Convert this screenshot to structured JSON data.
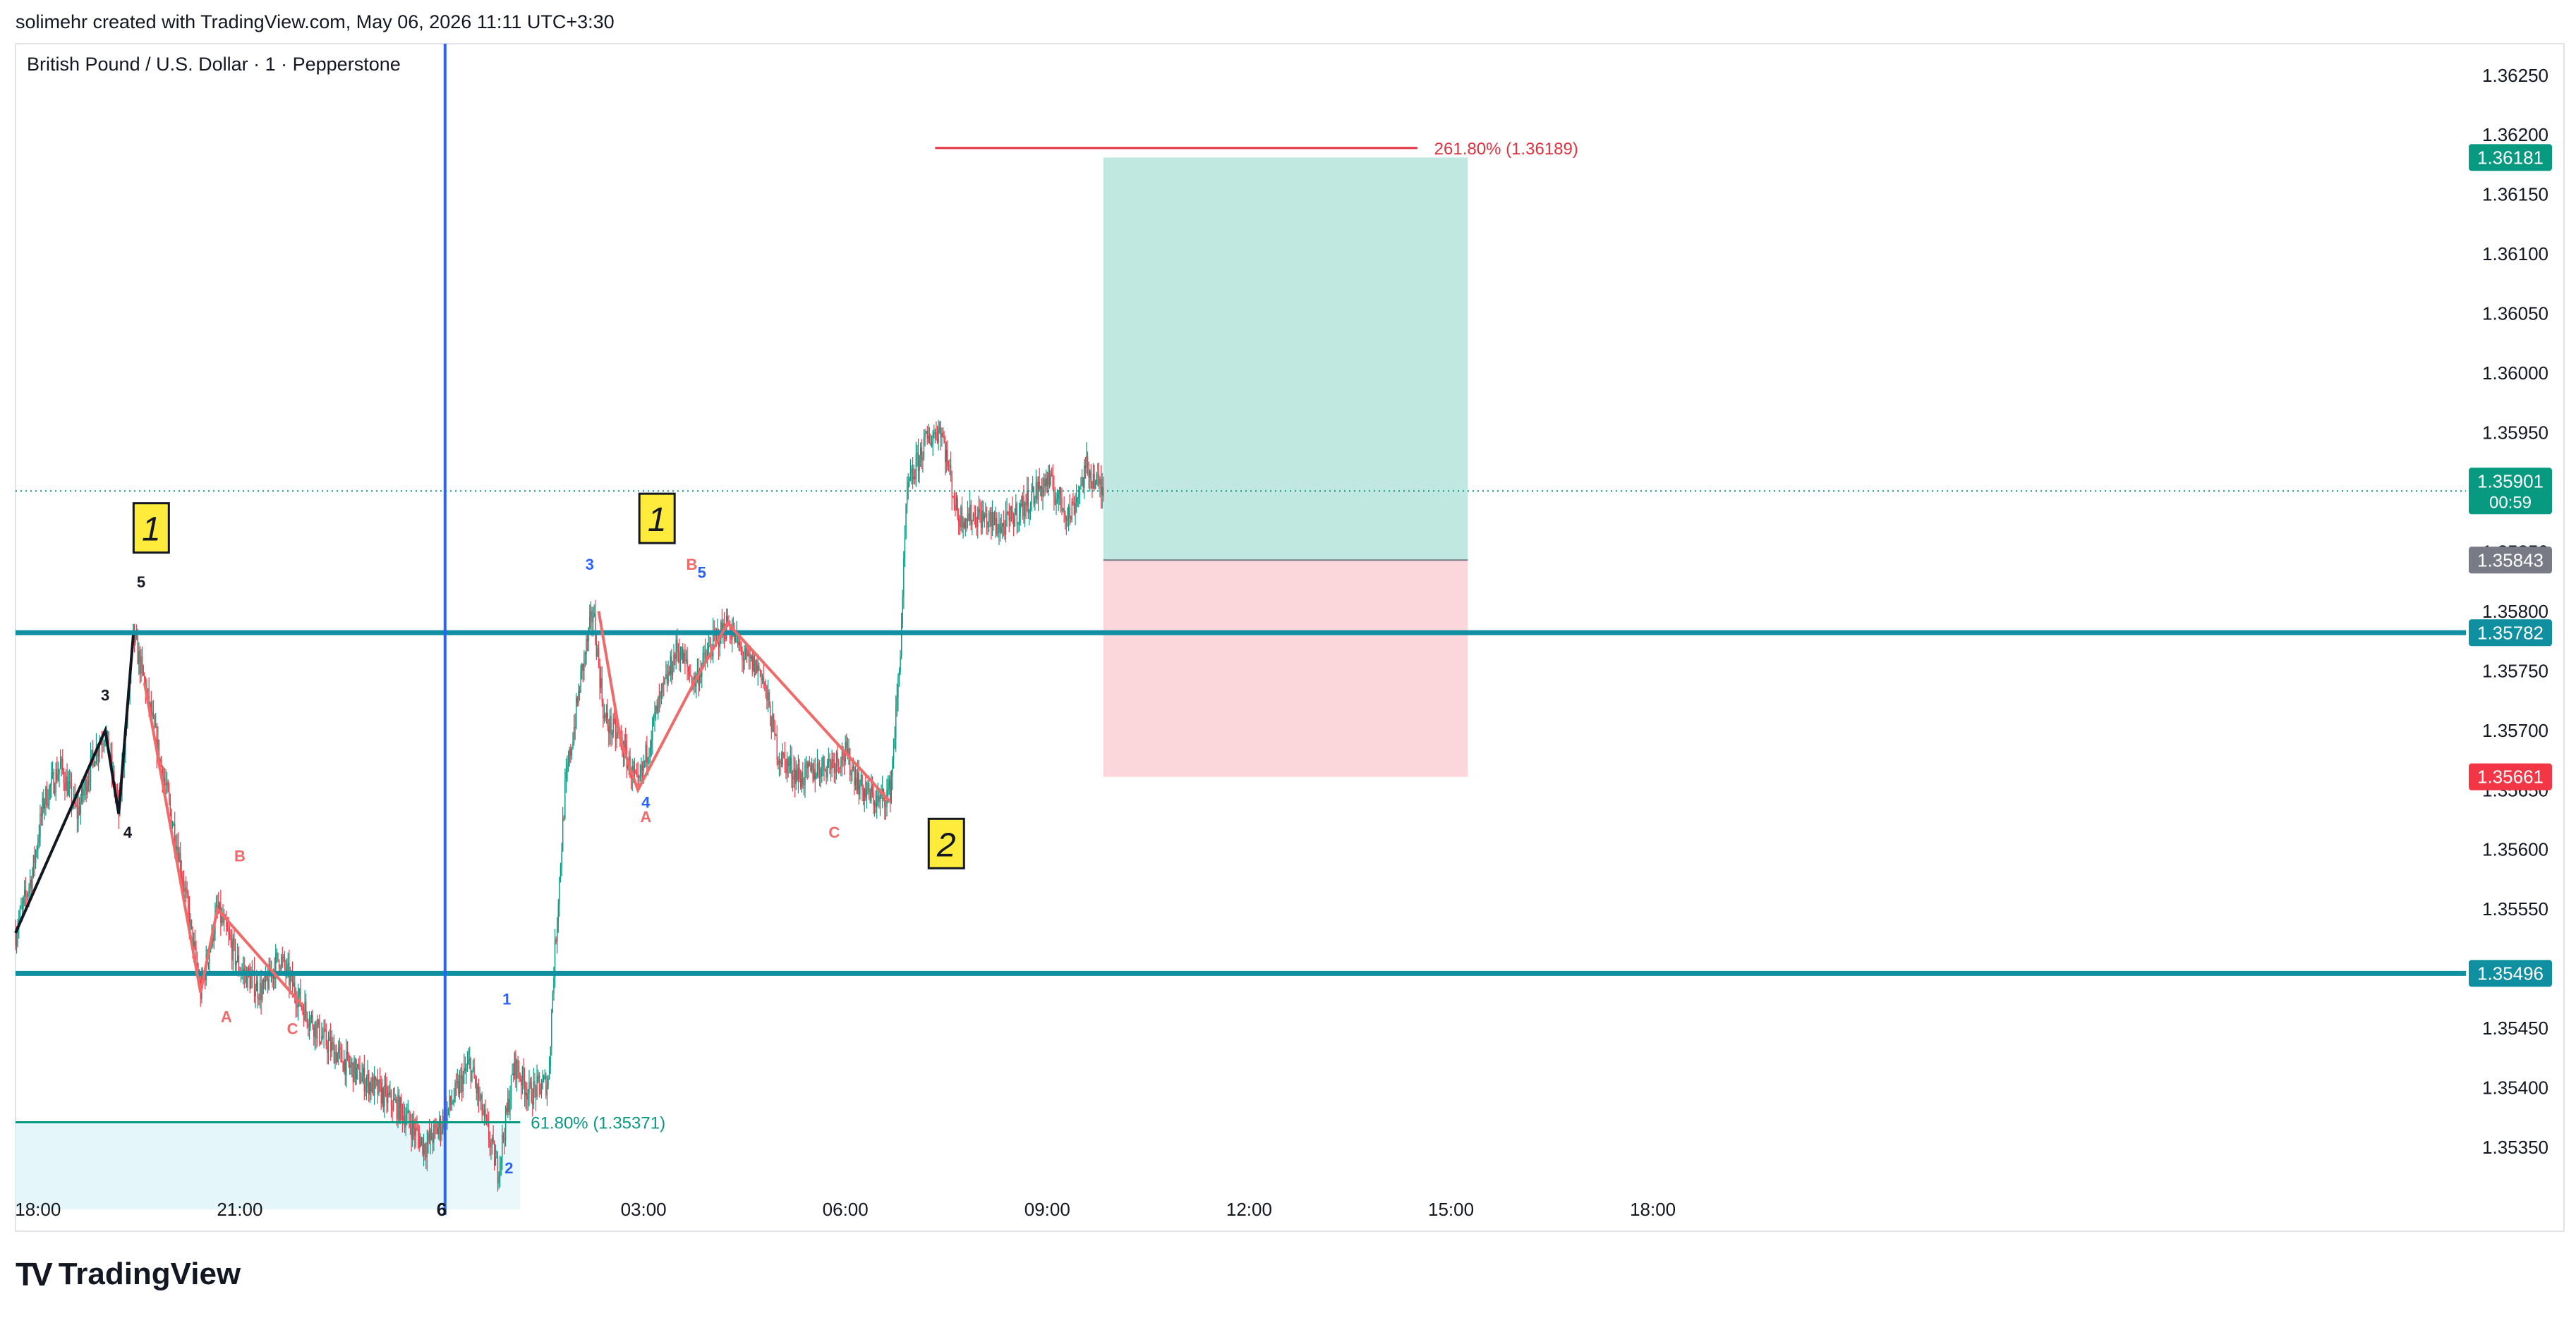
{
  "header": {
    "credit": "solimehr created with TradingView.com, May 06, 2026 11:11 UTC+3:30",
    "symbol": "British Pound / U.S. Dollar · 1 · Pepperstone"
  },
  "branding": {
    "logo_mark": "TV",
    "logo_text": "TradingView",
    "logo_icon": "tradingview-logo-icon"
  },
  "colors": {
    "candle_up": "#089981",
    "candle_down": "#f23645",
    "teal_line": "#0f8fa0",
    "blue_vline": "#2962ff",
    "wave_black": "#131722",
    "wave_red": "#f06a6a",
    "wave_blue": "#2962ff",
    "target_zone": "#c1e8e0",
    "stop_zone": "#fbd7db",
    "fib_red": "#e0313f",
    "fib_green": "#089981",
    "label_yellow": "#ffeb3b"
  },
  "chart_data": {
    "type": "candlestick",
    "y_axis": {
      "range": [
        1.35305,
        1.3627
      ],
      "ticks": [
        "1.36250",
        "1.36200",
        "1.36150",
        "1.36100",
        "1.36050",
        "1.36000",
        "1.35950",
        "1.35900",
        "1.35850",
        "1.35800",
        "1.35750",
        "1.35700",
        "1.35650",
        "1.35600",
        "1.35550",
        "1.35500",
        "1.35450",
        "1.35400",
        "1.35350"
      ]
    },
    "x_axis": {
      "ticks": [
        {
          "label": "18:00",
          "t": 0
        },
        {
          "label": "21:00",
          "t": 180
        },
        {
          "label": "6",
          "t": 360
        },
        {
          "label": "03:00",
          "t": 540
        },
        {
          "label": "06:00",
          "t": 720
        },
        {
          "label": "09:00",
          "t": 900
        },
        {
          "label": "12:00",
          "t": 1080
        },
        {
          "label": "15:00",
          "t": 1260
        },
        {
          "label": "18:00",
          "t": 1440
        }
      ],
      "t_range": [
        -20,
        2165
      ]
    },
    "price_path": [
      [
        -20,
        1.3553
      ],
      [
        -5,
        1.3558
      ],
      [
        5,
        1.3564
      ],
      [
        20,
        1.3567
      ],
      [
        35,
        1.3563
      ],
      [
        50,
        1.3568
      ],
      [
        60,
        1.357
      ],
      [
        72,
        1.3563
      ],
      [
        85,
        1.3578
      ],
      [
        95,
        1.3574
      ],
      [
        110,
        1.3567
      ],
      [
        125,
        1.356
      ],
      [
        145,
        1.3548
      ],
      [
        160,
        1.3555
      ],
      [
        180,
        1.355
      ],
      [
        200,
        1.3548
      ],
      [
        215,
        1.3551
      ],
      [
        235,
        1.3547
      ],
      [
        255,
        1.3544
      ],
      [
        275,
        1.3542
      ],
      [
        300,
        1.354
      ],
      [
        325,
        1.3538
      ],
      [
        345,
        1.3535
      ],
      [
        360,
        1.3537
      ],
      [
        385,
        1.3542
      ],
      [
        410,
        1.3533
      ],
      [
        425,
        1.3542
      ],
      [
        438,
        1.35395
      ],
      [
        455,
        1.35405
      ],
      [
        460,
        1.355
      ],
      [
        470,
        1.3565
      ],
      [
        485,
        1.3575
      ],
      [
        495,
        1.358
      ],
      [
        505,
        1.3571
      ],
      [
        520,
        1.3569
      ],
      [
        535,
        1.3565
      ],
      [
        550,
        1.3571
      ],
      [
        570,
        1.3577
      ],
      [
        585,
        1.3574
      ],
      [
        600,
        1.3577
      ],
      [
        615,
        1.3579
      ],
      [
        630,
        1.3576
      ],
      [
        645,
        1.3575
      ],
      [
        660,
        1.3568
      ],
      [
        680,
        1.3566
      ],
      [
        700,
        1.3567
      ],
      [
        720,
        1.3568
      ],
      [
        735,
        1.3565
      ],
      [
        750,
        1.3564
      ],
      [
        760,
        1.3565
      ],
      [
        768,
        1.3575
      ],
      [
        775,
        1.359
      ],
      [
        790,
        1.3594
      ],
      [
        805,
        1.35955
      ],
      [
        820,
        1.3588
      ],
      [
        840,
        1.3588
      ],
      [
        860,
        1.3587
      ],
      [
        880,
        1.3589
      ],
      [
        900,
        1.3591
      ],
      [
        920,
        1.3588
      ],
      [
        935,
        1.3592
      ],
      [
        950,
        1.359
      ]
    ],
    "candle_count": 950,
    "horizontal_lines": [
      {
        "price": 1.35782,
        "label": "1.35782",
        "color": "#0f8fa0"
      },
      {
        "price": 1.35496,
        "label": "1.35496",
        "color": "#0f8fa0"
      }
    ],
    "current_price": {
      "price": 1.35901,
      "label": "1.35901",
      "countdown": "00:59"
    },
    "position": {
      "type": "long",
      "t_start": 950,
      "t_end": 1275,
      "target": 1.36181,
      "target_label": "1.36181",
      "entry": 1.35843,
      "entry_label": "1.35843",
      "stop": 1.35661,
      "stop_label": "1.35661"
    },
    "vertical_line": {
      "t": 363
    },
    "fibonacci": [
      {
        "label": "261.80% (1.36189)",
        "price": 1.36189,
        "t_start": 800,
        "t_end": 1420,
        "color": "#e0313f"
      },
      {
        "label": "61.80% (1.35371)",
        "price": 1.35371,
        "t_start": -20,
        "t_end": 430,
        "color": "#089981"
      }
    ],
    "waves": {
      "black": [
        [
          -20,
          1.3553
        ],
        [
          60,
          1.357
        ],
        [
          72,
          1.3563
        ],
        [
          85,
          1.3578
        ]
      ],
      "red_abc_1": [
        [
          95,
          1.3574
        ],
        [
          145,
          1.3548
        ],
        [
          160,
          1.3555
        ],
        [
          235,
          1.3547
        ]
      ],
      "red_abc_2": [
        [
          500,
          1.358
        ],
        [
          520,
          1.3569
        ],
        [
          535,
          1.3565
        ],
        [
          585,
          1.3574
        ],
        [
          615,
          1.3579
        ],
        [
          760,
          1.3564
        ]
      ]
    },
    "wave_labels": [
      {
        "text": "3",
        "t": 60,
        "price": 1.35725,
        "color": "#131722"
      },
      {
        "text": "4",
        "t": 80,
        "price": 1.3561,
        "color": "#131722"
      },
      {
        "text": "5",
        "t": 92,
        "price": 1.3582,
        "color": "#131722"
      },
      {
        "text": "B",
        "t": 180,
        "price": 1.3559,
        "color": "#f06a6a"
      },
      {
        "text": "A",
        "t": 168,
        "price": 1.35455,
        "color": "#f06a6a"
      },
      {
        "text": "C",
        "t": 227,
        "price": 1.35445,
        "color": "#f06a6a"
      },
      {
        "text": "3",
        "t": 492,
        "price": 1.35835,
        "color": "#2962ff"
      },
      {
        "text": "B",
        "t": 583,
        "price": 1.35835,
        "color": "#f06a6a"
      },
      {
        "text": "5",
        "t": 592,
        "price": 1.35828,
        "color": "#2962ff"
      },
      {
        "text": "4",
        "t": 542,
        "price": 1.35635,
        "color": "#2962ff"
      },
      {
        "text": "A",
        "t": 542,
        "price": 1.35623,
        "color": "#f06a6a"
      },
      {
        "text": "C",
        "t": 710,
        "price": 1.3561,
        "color": "#f06a6a"
      },
      {
        "text": "1",
        "t": 418,
        "price": 1.3547,
        "color": "#2962ff"
      },
      {
        "text": "2",
        "t": 420,
        "price": 1.35328,
        "color": "#2962ff"
      }
    ],
    "degree_labels": [
      {
        "text": "1",
        "t": 101,
        "price": 1.3587
      },
      {
        "text": "1",
        "t": 552,
        "price": 1.35878
      },
      {
        "text": "2",
        "t": 810,
        "price": 1.35605
      }
    ]
  }
}
